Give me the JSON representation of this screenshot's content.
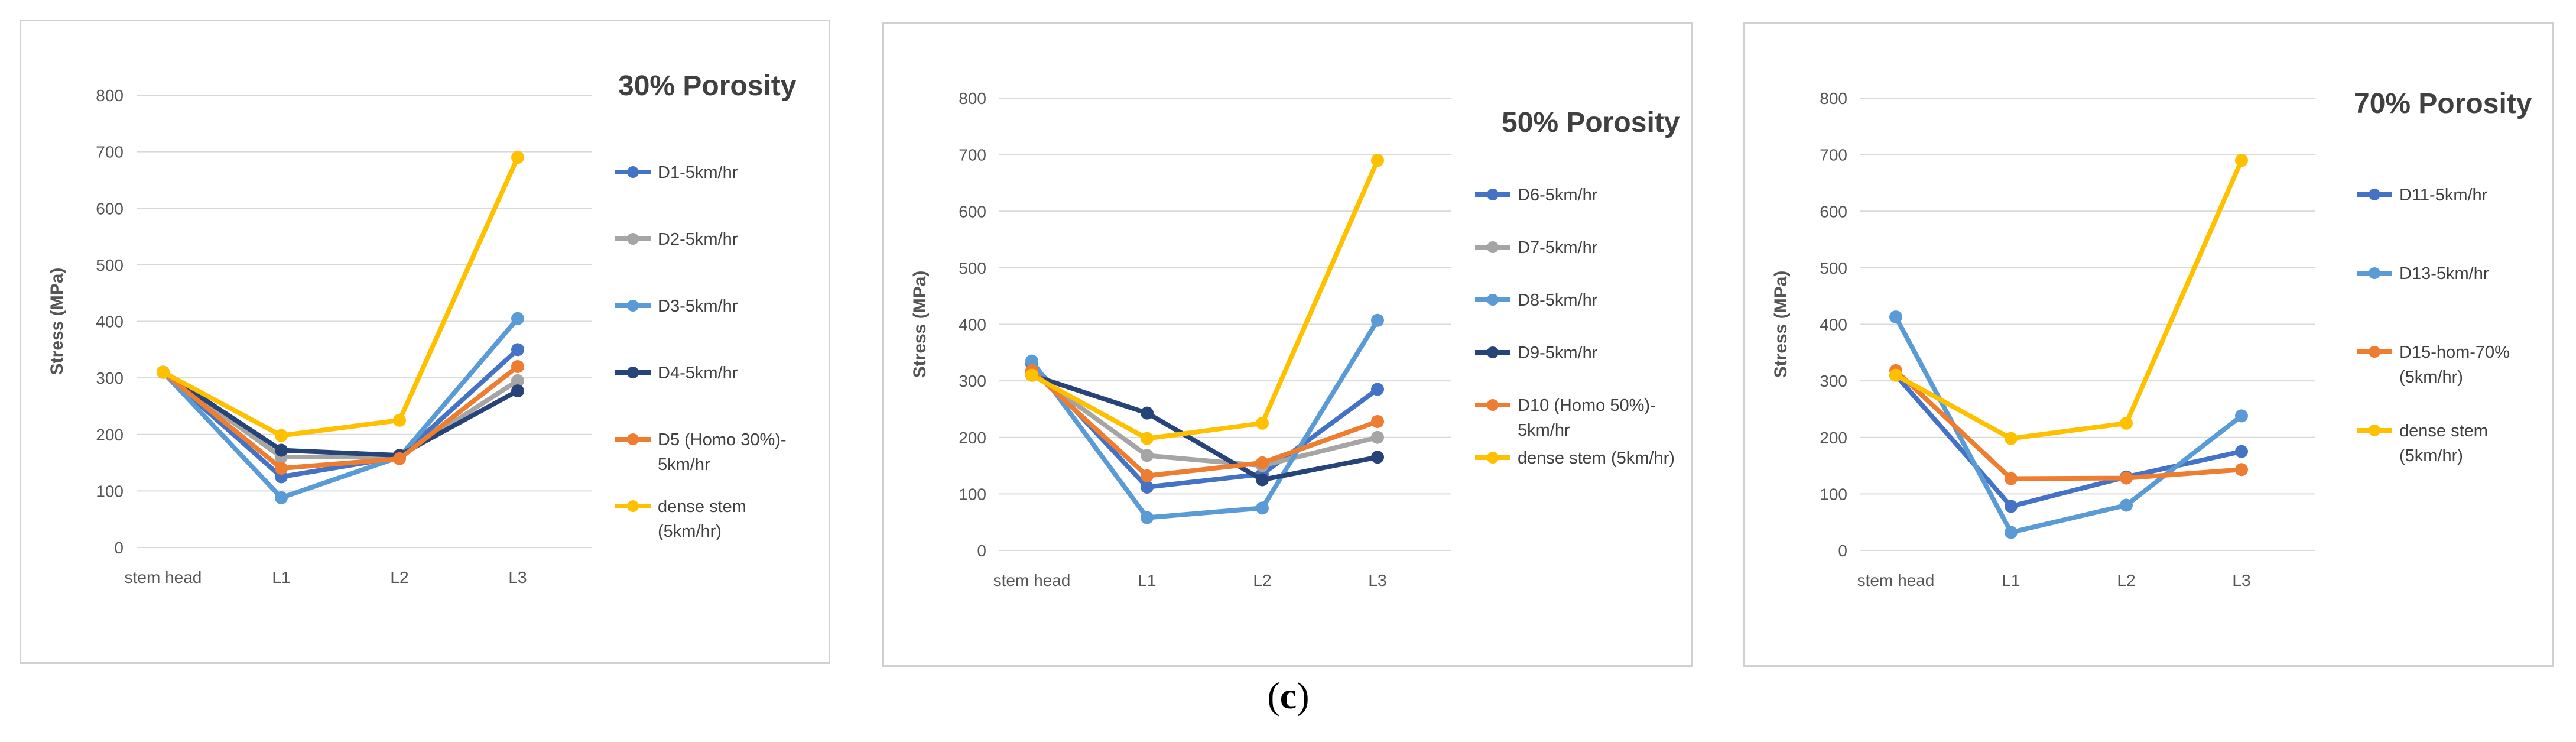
{
  "caption": {
    "open": "(",
    "letter": "c",
    "close": ")"
  },
  "chart_data": [
    {
      "type": "line",
      "title": "30% Porosity",
      "xlabel": "",
      "ylabel": "Stress (MPa)",
      "ylim": [
        0,
        800
      ],
      "yticks": [
        0,
        100,
        200,
        300,
        400,
        500,
        600,
        700,
        800
      ],
      "grid": true,
      "legend_position": "right",
      "categories": [
        "stem head",
        "L1",
        "L2",
        "L3"
      ],
      "series": [
        {
          "name": "D1-5km/hr",
          "legend_lines": [
            "D1-5km/hr"
          ],
          "color": "#4472C4",
          "values": [
            310,
            125,
            160,
            350
          ]
        },
        {
          "name": "D2-5km/hr",
          "legend_lines": [
            "D2-5km/hr"
          ],
          "color": "#A5A5A5",
          "values": [
            310,
            160,
            160,
            295
          ]
        },
        {
          "name": "D3-5km/hr",
          "legend_lines": [
            "D3-5km/hr"
          ],
          "color": "#5B9BD5",
          "values": [
            310,
            88,
            160,
            405
          ]
        },
        {
          "name": "D4-5km/hr",
          "legend_lines": [
            "D4-5km/hr"
          ],
          "color": "#264478",
          "values": [
            310,
            172,
            163,
            277
          ]
        },
        {
          "name": "D5 (Homo 30%)-5km/hr",
          "legend_lines": [
            "D5 (Homo 30%)-",
            "5km/hr"
          ],
          "color": "#ED7D31",
          "values": [
            310,
            140,
            157,
            320
          ]
        },
        {
          "name": "dense stem (5km/hr)",
          "legend_lines": [
            "dense stem",
            "(5km/hr)"
          ],
          "color": "#FFC000",
          "values": [
            310,
            198,
            225,
            690
          ]
        }
      ]
    },
    {
      "type": "line",
      "title": "50% Porosity",
      "xlabel": "",
      "ylabel": "Stress (MPa)",
      "ylim": [
        0,
        800
      ],
      "yticks": [
        0,
        100,
        200,
        300,
        400,
        500,
        600,
        700,
        800
      ],
      "grid": true,
      "legend_position": "right",
      "categories": [
        "stem head",
        "L1",
        "L2",
        "L3"
      ],
      "series": [
        {
          "name": "D6-5km/hr",
          "legend_lines": [
            "D6-5km/hr"
          ],
          "color": "#4472C4",
          "values": [
            330,
            112,
            135,
            285
          ]
        },
        {
          "name": "D7-5km/hr",
          "legend_lines": [
            "D7-5km/hr"
          ],
          "color": "#A5A5A5",
          "values": [
            315,
            168,
            150,
            200
          ]
        },
        {
          "name": "D8-5km/hr",
          "legend_lines": [
            "D8-5km/hr"
          ],
          "color": "#5B9BD5",
          "values": [
            335,
            58,
            75,
            407
          ]
        },
        {
          "name": "D9-5km/hr",
          "legend_lines": [
            "D9-5km/hr"
          ],
          "color": "#264478",
          "values": [
            310,
            243,
            125,
            165
          ]
        },
        {
          "name": "D10 (Homo 50%)-5km/hr",
          "legend_lines": [
            "D10 (Homo 50%)-",
            "5km/hr"
          ],
          "color": "#ED7D31",
          "values": [
            318,
            132,
            155,
            228
          ]
        },
        {
          "name": "dense stem (5km/hr)",
          "legend_lines": [
            "dense stem (5km/hr)"
          ],
          "color": "#FFC000",
          "values": [
            310,
            198,
            225,
            690
          ]
        }
      ]
    },
    {
      "type": "line",
      "title": "70% Porosity",
      "xlabel": "",
      "ylabel": "Stress (MPa)",
      "ylim": [
        0,
        800
      ],
      "yticks": [
        0,
        100,
        200,
        300,
        400,
        500,
        600,
        700,
        800
      ],
      "grid": true,
      "legend_position": "right",
      "categories": [
        "stem head",
        "L1",
        "L2",
        "L3"
      ],
      "series": [
        {
          "name": "D11-5km/hr",
          "legend_lines": [
            "D11-5km/hr"
          ],
          "color": "#4472C4",
          "values": [
            310,
            78,
            130,
            175
          ]
        },
        {
          "name": "D13-5km/hr",
          "legend_lines": [
            "D13-5km/hr"
          ],
          "color": "#5B9BD5",
          "values": [
            413,
            32,
            80,
            238
          ]
        },
        {
          "name": "D15-hom-70% (5km/hr)",
          "legend_lines": [
            "D15-hom-70%",
            "(5km/hr)"
          ],
          "color": "#ED7D31",
          "values": [
            318,
            127,
            128,
            143
          ]
        },
        {
          "name": "dense stem (5km/hr)",
          "legend_lines": [
            "dense stem",
            "(5km/hr)"
          ],
          "color": "#FFC000",
          "values": [
            310,
            198,
            225,
            690
          ]
        }
      ]
    }
  ]
}
